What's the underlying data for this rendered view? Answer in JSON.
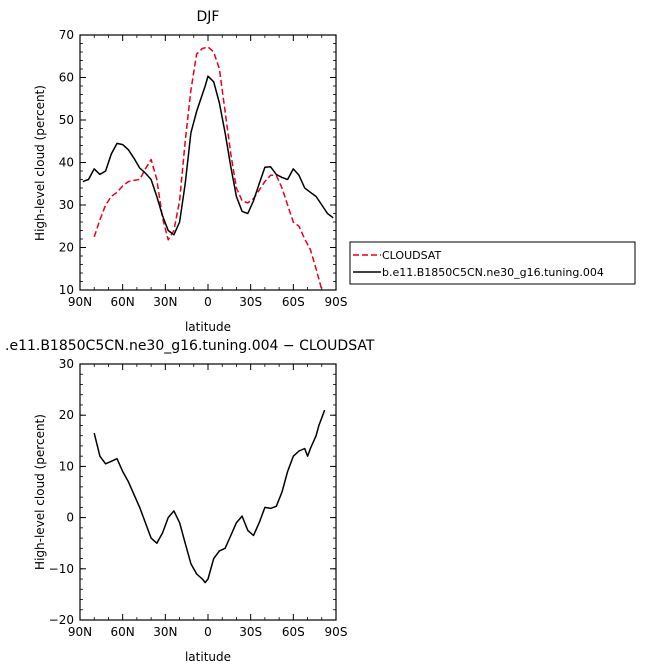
{
  "chart_data": [
    {
      "type": "line",
      "title": "DJF",
      "xlabel": "latitude",
      "ylabel": "High-level cloud (percent)",
      "xlim": [
        90,
        -90
      ],
      "ylim": [
        10,
        70
      ],
      "x_ticks": [
        90,
        60,
        30,
        0,
        -30,
        -60,
        -90
      ],
      "x_tick_labels": [
        "90N",
        "60N",
        "30N",
        "0",
        "30S",
        "60S",
        "90S"
      ],
      "y_ticks": [
        10,
        20,
        30,
        40,
        50,
        60,
        70
      ],
      "y_tick_labels": [
        "10",
        "20",
        "30",
        "40",
        "50",
        "60",
        "70"
      ],
      "legend_position": "right",
      "series": [
        {
          "name": "CLOUDSAT",
          "color": "#e8001c",
          "style": "dashed",
          "x": [
            80,
            76,
            72,
            68,
            64,
            60,
            56,
            52,
            48,
            44,
            40,
            36,
            32,
            28,
            24,
            20,
            16,
            12,
            8,
            4,
            0,
            -4,
            -8,
            -12,
            -16,
            -20,
            -24,
            -28,
            -32,
            -36,
            -40,
            -44,
            -48,
            -52,
            -56,
            -60,
            -64,
            -68,
            -72,
            -76,
            -80
          ],
          "y": [
            22.5,
            26.5,
            30,
            32,
            33,
            34.5,
            35.5,
            35.8,
            36,
            38.5,
            40.7,
            36,
            27,
            21.8,
            24,
            31,
            45,
            57,
            65.5,
            66.8,
            67.2,
            66,
            62,
            52,
            42,
            34,
            31,
            30.5,
            31.5,
            33.5,
            35.5,
            37,
            37,
            34,
            30,
            26,
            25,
            22,
            19.5,
            15,
            10
          ]
        },
        {
          "name": "b.e11.B1850C5CN.ne30_g16.tuning.004",
          "color": "#000000",
          "style": "solid",
          "x": [
            88,
            84,
            80,
            76,
            72,
            68,
            64,
            60,
            56,
            52,
            48,
            44,
            40,
            36,
            32,
            28,
            24,
            20,
            16,
            12,
            8,
            4,
            2,
            0,
            -4,
            -8,
            -12,
            -16,
            -20,
            -24,
            -28,
            -32,
            -36,
            -40,
            -44,
            -48,
            -52,
            -56,
            -60,
            -64,
            -68,
            -72,
            -76,
            -80,
            -84,
            -88
          ],
          "y": [
            35.5,
            36,
            38.5,
            37.2,
            38,
            42,
            44.5,
            44.2,
            43,
            41,
            38.7,
            37.5,
            36,
            32,
            27.5,
            24,
            23,
            26,
            35,
            47,
            52,
            56,
            58,
            60.3,
            59,
            54,
            47,
            39,
            32,
            28.5,
            28,
            31,
            35,
            38.9,
            39,
            37.2,
            36.5,
            36,
            38.5,
            37,
            34,
            33,
            32,
            30,
            28,
            27
          ]
        }
      ]
    },
    {
      "type": "line",
      "title": ".e11.B1850C5CN.ne30_g16.tuning.004 − CLOUDSAT",
      "xlabel": "latitude",
      "ylabel": "High-level cloud (percent)",
      "xlim": [
        90,
        -90
      ],
      "ylim": [
        -20,
        30
      ],
      "x_ticks": [
        90,
        60,
        30,
        0,
        -30,
        -60,
        -90
      ],
      "x_tick_labels": [
        "90N",
        "60N",
        "30N",
        "0",
        "30S",
        "60S",
        "90S"
      ],
      "y_ticks": [
        -20,
        -10,
        0,
        10,
        20,
        30
      ],
      "y_tick_labels": [
        "−20",
        "−10",
        "0",
        "10",
        "20",
        "30"
      ],
      "series": [
        {
          "color": "#000000",
          "style": "solid",
          "x": [
            80,
            76,
            72,
            68,
            64,
            60,
            56,
            52,
            48,
            44,
            40,
            36,
            32,
            28,
            24,
            20,
            16,
            12,
            8,
            4,
            2,
            0,
            -4,
            -8,
            -12,
            -16,
            -20,
            -24,
            -28,
            -32,
            -36,
            -40,
            -44,
            -48,
            -52,
            -56,
            -60,
            -64,
            -68,
            -70,
            -72,
            -76,
            -78,
            -80,
            -82
          ],
          "y": [
            16.5,
            12,
            10.5,
            11,
            11.5,
            9,
            7,
            4.5,
            2,
            -1,
            -4,
            -5,
            -3,
            0,
            1.3,
            -1,
            -5,
            -9,
            -11,
            -12,
            -12.7,
            -12,
            -8,
            -6.5,
            -6,
            -3.5,
            -1,
            0.3,
            -2.5,
            -3.5,
            -1,
            2,
            1.8,
            2.2,
            5,
            9,
            12,
            13,
            13.5,
            12,
            13.5,
            16,
            18,
            19.5,
            21
          ]
        }
      ]
    }
  ]
}
